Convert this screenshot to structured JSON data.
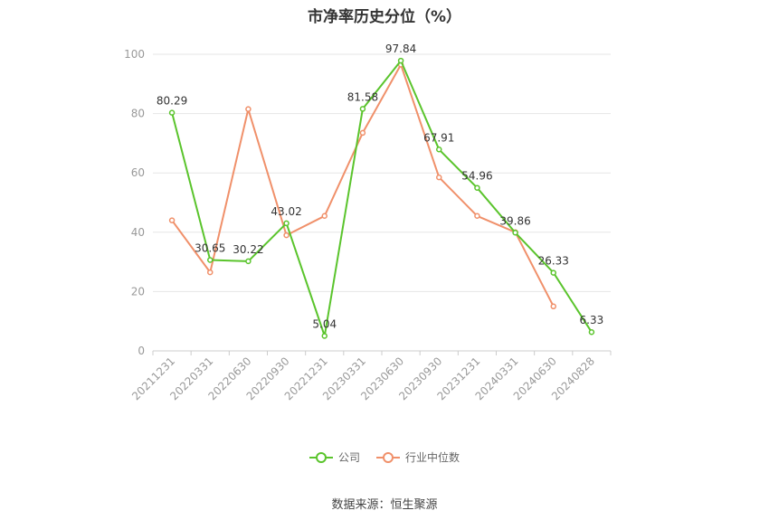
{
  "chart_data": {
    "type": "line",
    "title": "市净率历史分位（%）",
    "categories": [
      "20211231",
      "20220331",
      "20220630",
      "20220930",
      "20221231",
      "20230331",
      "20230630",
      "20230930",
      "20231231",
      "20240331",
      "20240630",
      "20240828"
    ],
    "ylim": [
      0,
      100
    ],
    "yticks": [
      0,
      20,
      40,
      60,
      80,
      100
    ],
    "grid": true,
    "legend_position": "bottom",
    "series": [
      {
        "name": "公司",
        "color": "#5ac42c",
        "values": [
          80.29,
          30.65,
          30.22,
          43.02,
          5.04,
          81.58,
          97.84,
          67.91,
          54.96,
          39.86,
          26.33,
          6.33
        ],
        "labels": [
          "80.29",
          "30.65",
          "30.22",
          "43.02",
          "5.04",
          "81.58",
          "97.84",
          "67.91",
          "54.96",
          "39.86",
          "26.33",
          "6.33"
        ]
      },
      {
        "name": "行业中位数",
        "color": "#f0906a",
        "values": [
          44.0,
          26.5,
          81.5,
          39.0,
          45.5,
          73.5,
          96.5,
          58.5,
          45.5,
          40.0,
          15.0,
          null
        ]
      }
    ]
  },
  "source": "数据来源：恒生聚源"
}
